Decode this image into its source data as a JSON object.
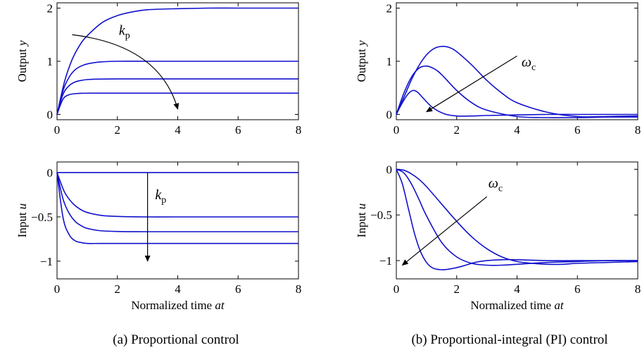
{
  "colors": {
    "curve": "#1111cc",
    "axis": "#000000",
    "arrow": "#000000"
  },
  "captions": {
    "left": "(a) Proportional control",
    "right": "(b) Proportional-integral (PI) control"
  },
  "chart_data": [
    {
      "id": "p-output",
      "type": "line",
      "xlabel": "",
      "ylabel": "Output y",
      "xlim": [
        0,
        8
      ],
      "ylim": [
        -0.1,
        2.1
      ],
      "xticks": [
        0,
        2,
        4,
        6,
        8
      ],
      "yticks": [
        0,
        1,
        2
      ],
      "xtick_labels": [
        "0",
        "2",
        "4",
        "6",
        "8"
      ],
      "ytick_labels": [
        "0",
        "1",
        "2"
      ],
      "grid": false,
      "series": [
        {
          "x": [
            0,
            0.25,
            0.5,
            0.75,
            1,
            1.5,
            2,
            2.5,
            3,
            4,
            5,
            6,
            7,
            8
          ],
          "y": [
            0,
            0.62,
            1.03,
            1.3,
            1.48,
            1.73,
            1.86,
            1.93,
            1.97,
            1.99,
            2.0,
            2.0,
            2.0,
            2.0
          ]
        },
        {
          "x": [
            0,
            0.2,
            0.4,
            0.6,
            0.8,
            1,
            1.4,
            2,
            3,
            4,
            6,
            8
          ],
          "y": [
            0,
            0.45,
            0.7,
            0.84,
            0.91,
            0.95,
            0.985,
            1.0,
            1.0,
            1.0,
            1.0,
            1.0
          ]
        },
        {
          "x": [
            0,
            0.2,
            0.4,
            0.6,
            0.8,
            1,
            1.4,
            2,
            3,
            4,
            6,
            8
          ],
          "y": [
            0,
            0.38,
            0.54,
            0.61,
            0.64,
            0.655,
            0.665,
            0.667,
            0.667,
            0.667,
            0.667,
            0.667
          ]
        },
        {
          "x": [
            0,
            0.2,
            0.4,
            0.6,
            0.8,
            1,
            1.4,
            2,
            3,
            4,
            6,
            8
          ],
          "y": [
            0,
            0.29,
            0.37,
            0.39,
            0.398,
            0.4,
            0.4,
            0.4,
            0.4,
            0.4,
            0.4,
            0.4
          ]
        }
      ],
      "annotation": {
        "label": "k",
        "subscript": "p",
        "x": 2.05,
        "y": 1.5,
        "arrow": {
          "from": [
            0.5,
            1.5
          ],
          "ctrl": [
            3.4,
            1.3
          ],
          "to": [
            4.0,
            0.1
          ],
          "head": "end"
        }
      }
    },
    {
      "id": "p-input",
      "type": "line",
      "xlabel": "Normalized time at",
      "ylabel": "Input u",
      "xlim": [
        0,
        8
      ],
      "ylim": [
        -1.2,
        0.12
      ],
      "xticks": [
        0,
        2,
        4,
        6,
        8
      ],
      "yticks": [
        0,
        -0.5,
        -1
      ],
      "xtick_labels": [
        "0",
        "2",
        "4",
        "6",
        "8"
      ],
      "ytick_labels": [
        "0",
        "-0.5",
        "-1"
      ],
      "grid": false,
      "series": [
        {
          "x": [
            0,
            8
          ],
          "y": [
            0,
            0
          ]
        },
        {
          "x": [
            0,
            0.25,
            0.5,
            0.75,
            1,
            1.5,
            2,
            3,
            4,
            6,
            8
          ],
          "y": [
            0,
            -0.22,
            -0.34,
            -0.41,
            -0.45,
            -0.485,
            -0.495,
            -0.5,
            -0.5,
            -0.5,
            -0.5
          ]
        },
        {
          "x": [
            0,
            0.2,
            0.4,
            0.6,
            0.8,
            1,
            1.4,
            2,
            3,
            4,
            6,
            8
          ],
          "y": [
            0,
            -0.3,
            -0.46,
            -0.55,
            -0.6,
            -0.63,
            -0.655,
            -0.665,
            -0.667,
            -0.667,
            -0.667,
            -0.667
          ]
        },
        {
          "x": [
            0,
            0.2,
            0.4,
            0.6,
            0.8,
            1,
            1.4,
            2,
            3,
            4,
            6,
            8
          ],
          "y": [
            0,
            -0.51,
            -0.7,
            -0.77,
            -0.79,
            -0.8,
            -0.8,
            -0.8,
            -0.8,
            -0.8,
            -0.8,
            -0.8
          ]
        }
      ],
      "annotation": {
        "label": "k",
        "subscript": "p",
        "x": 3.25,
        "y": -0.3,
        "arrow": {
          "from": [
            3.0,
            0.0
          ],
          "to": [
            3.0,
            -1.0
          ],
          "head": "end"
        }
      }
    },
    {
      "id": "pi-output",
      "type": "line",
      "xlabel": "",
      "ylabel": "Output y",
      "xlim": [
        0,
        8
      ],
      "ylim": [
        -0.1,
        2.1
      ],
      "xticks": [
        0,
        2,
        4,
        6,
        8
      ],
      "yticks": [
        0,
        1,
        2
      ],
      "xtick_labels": [
        "0",
        "2",
        "4",
        "6",
        "8"
      ],
      "ytick_labels": [
        "0",
        "1",
        "2"
      ],
      "grid": false,
      "series": [
        {
          "x": [
            0,
            0.25,
            0.5,
            0.75,
            1,
            1.25,
            1.5,
            1.75,
            2,
            2.5,
            3,
            3.5,
            4,
            5,
            6,
            7,
            8
          ],
          "y": [
            0,
            0.32,
            0.65,
            0.92,
            1.12,
            1.24,
            1.28,
            1.26,
            1.18,
            0.93,
            0.64,
            0.4,
            0.22,
            0.04,
            -0.04,
            -0.04,
            -0.03
          ]
        },
        {
          "x": [
            0,
            0.25,
            0.5,
            0.75,
            1,
            1.25,
            1.5,
            2,
            2.5,
            3,
            4,
            5,
            6,
            7,
            8
          ],
          "y": [
            0,
            0.4,
            0.7,
            0.87,
            0.91,
            0.86,
            0.75,
            0.45,
            0.22,
            0.08,
            -0.04,
            -0.06,
            -0.06,
            -0.05,
            -0.05
          ]
        },
        {
          "x": [
            0,
            0.2,
            0.4,
            0.55,
            0.7,
            0.9,
            1.2,
            1.6,
            2,
            2.5,
            3,
            4,
            5,
            6,
            8
          ],
          "y": [
            0,
            0.22,
            0.39,
            0.45,
            0.42,
            0.3,
            0.13,
            0.01,
            -0.03,
            -0.03,
            -0.02,
            -0.01,
            0,
            0,
            0
          ]
        }
      ],
      "annotation": {
        "label": "ω",
        "subscript": "c",
        "x": 4.15,
        "y": 0.9,
        "arrow": {
          "from": [
            4.0,
            1.1
          ],
          "to": [
            1.0,
            0.05
          ],
          "head": "end"
        }
      }
    },
    {
      "id": "pi-input",
      "type": "line",
      "xlabel": "Normalized time at",
      "ylabel": "Input u",
      "xlim": [
        0,
        8
      ],
      "ylim": [
        -1.2,
        0.08
      ],
      "xticks": [
        0,
        2,
        4,
        6,
        8
      ],
      "yticks": [
        0,
        -0.5,
        -1
      ],
      "xtick_labels": [
        "0",
        "2",
        "4",
        "6",
        "8"
      ],
      "ytick_labels": [
        "0",
        "-0.5",
        "-1"
      ],
      "grid": false,
      "series": [
        {
          "x": [
            0,
            0.25,
            0.5,
            0.75,
            1,
            1.5,
            2,
            2.5,
            3,
            3.5,
            4,
            4.5,
            5,
            5.5,
            6,
            7,
            8
          ],
          "y": [
            0,
            -0.01,
            -0.05,
            -0.11,
            -0.19,
            -0.38,
            -0.57,
            -0.74,
            -0.87,
            -0.96,
            -1.01,
            -1.03,
            -1.04,
            -1.04,
            -1.03,
            -1.02,
            -1.01
          ]
        },
        {
          "x": [
            0,
            0.25,
            0.5,
            0.75,
            1,
            1.5,
            2,
            2.5,
            3,
            3.5,
            4,
            5,
            6,
            7,
            8
          ],
          "y": [
            0,
            -0.04,
            -0.16,
            -0.33,
            -0.51,
            -0.8,
            -0.96,
            -1.03,
            -1.05,
            -1.05,
            -1.04,
            -1.02,
            -1.01,
            -1.0,
            -1.0
          ]
        },
        {
          "x": [
            0,
            0.2,
            0.4,
            0.6,
            0.8,
            1,
            1.2,
            1.5,
            1.8,
            2.2,
            2.6,
            3,
            3.5,
            4,
            5,
            6,
            8
          ],
          "y": [
            0,
            -0.16,
            -0.43,
            -0.7,
            -0.9,
            -1.02,
            -1.08,
            -1.1,
            -1.09,
            -1.06,
            -1.02,
            -1.0,
            -0.99,
            -0.99,
            -1.0,
            -1.0,
            -1.0
          ]
        }
      ],
      "annotation": {
        "label": "ω",
        "subscript": "c",
        "x": 3.05,
        "y": -0.2,
        "arrow": {
          "from": [
            3.0,
            -0.3
          ],
          "to": [
            0.2,
            -1.05
          ],
          "head": "end"
        }
      }
    }
  ]
}
